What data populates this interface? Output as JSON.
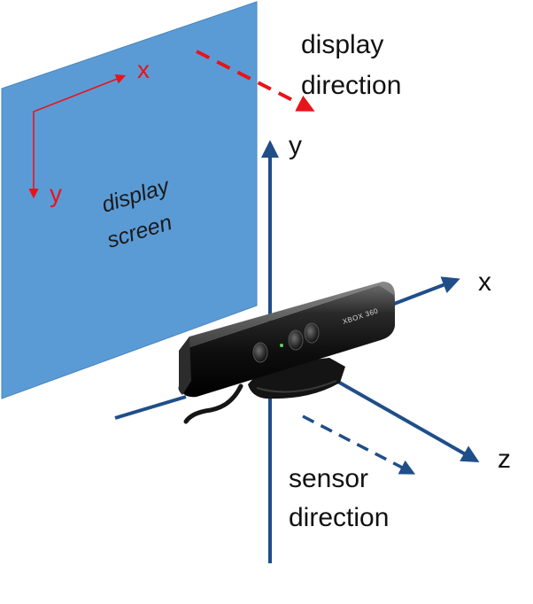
{
  "screen": {
    "label_line1": "display",
    "label_line2": "screen",
    "axis_x": "x",
    "axis_y": "y",
    "color": "#5b9bd5"
  },
  "display_direction": {
    "line1": "display",
    "line2": "direction",
    "color": "#e8141a"
  },
  "sensor_axes": {
    "x": "x",
    "y": "y",
    "z": "z",
    "color": "#1f4e89"
  },
  "sensor_direction": {
    "line1": "sensor",
    "line2": "direction",
    "color": "#1f4e89"
  },
  "device": {
    "brand_text": "XBOX 360"
  }
}
